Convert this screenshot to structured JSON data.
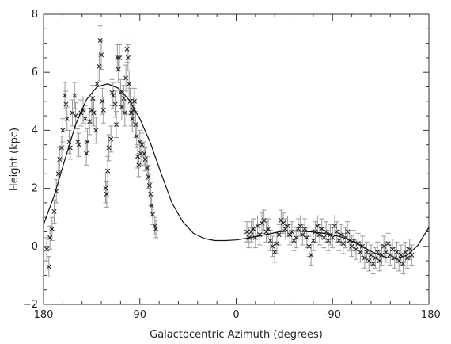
{
  "chart_data": {
    "type": "scatter",
    "title": "",
    "xlabel": "Galactocentric Azimuth (degrees)",
    "ylabel": "Height (kpc)",
    "xlim": [
      180,
      -180
    ],
    "ylim": [
      -2,
      8
    ],
    "x_reversed": true,
    "xticks": [
      180,
      90,
      0,
      -90,
      -180
    ],
    "xtick_labels": [
      "180",
      "90",
      "0",
      "-90",
      "-180"
    ],
    "yticks": [
      -2,
      0,
      2,
      4,
      6,
      8
    ],
    "ytick_labels": [
      "−2",
      "0",
      "2",
      "4",
      "6",
      "8"
    ],
    "grid": false,
    "marker": "x",
    "colors": {
      "points": "#222222",
      "errorbars": "#9a9a9a",
      "fit": "#111111",
      "frame": "#333333"
    },
    "series": [
      {
        "points": [
          {
            "x": 177,
            "y": -0.1,
            "err": 0.4
          },
          {
            "x": 175,
            "y": -0.7,
            "err": 0.35
          },
          {
            "x": 174,
            "y": 0.3,
            "err": 0.4
          },
          {
            "x": 172,
            "y": 0.6,
            "err": 0.4
          },
          {
            "x": 170,
            "y": 1.2,
            "err": 0.4
          },
          {
            "x": 168,
            "y": 1.9,
            "err": 0.4
          },
          {
            "x": 166,
            "y": 2.5,
            "err": 0.4
          },
          {
            "x": 165,
            "y": 3.0,
            "err": 0.4
          },
          {
            "x": 163,
            "y": 3.4,
            "err": 0.4
          },
          {
            "x": 162,
            "y": 4.0,
            "err": 0.4
          },
          {
            "x": 160,
            "y": 5.2,
            "err": 0.45
          },
          {
            "x": 159,
            "y": 4.9,
            "err": 0.45
          },
          {
            "x": 158,
            "y": 4.4,
            "err": 0.4
          },
          {
            "x": 156,
            "y": 3.6,
            "err": 0.4
          },
          {
            "x": 155,
            "y": 3.4,
            "err": 0.4
          },
          {
            "x": 153,
            "y": 4.6,
            "err": 0.45
          },
          {
            "x": 151,
            "y": 5.2,
            "err": 0.45
          },
          {
            "x": 150,
            "y": 4.5,
            "err": 0.45
          },
          {
            "x": 148,
            "y": 3.6,
            "err": 0.45
          },
          {
            "x": 147,
            "y": 3.5,
            "err": 0.4
          },
          {
            "x": 145,
            "y": 4.6,
            "err": 0.45
          },
          {
            "x": 143,
            "y": 4.7,
            "err": 0.45
          },
          {
            "x": 141,
            "y": 4.4,
            "err": 0.45
          },
          {
            "x": 140,
            "y": 3.2,
            "err": 0.4
          },
          {
            "x": 139,
            "y": 3.6,
            "err": 0.45
          },
          {
            "x": 137,
            "y": 4.3,
            "err": 0.45
          },
          {
            "x": 135,
            "y": 4.7,
            "err": 0.45
          },
          {
            "x": 134,
            "y": 5.1,
            "err": 0.45
          },
          {
            "x": 133,
            "y": 4.6,
            "err": 0.45
          },
          {
            "x": 131,
            "y": 4.0,
            "err": 0.45
          },
          {
            "x": 130,
            "y": 5.6,
            "err": 0.45
          },
          {
            "x": 128,
            "y": 6.2,
            "err": 0.5
          },
          {
            "x": 127,
            "y": 7.1,
            "err": 0.5
          },
          {
            "x": 126,
            "y": 6.6,
            "err": 0.5
          },
          {
            "x": 125,
            "y": 5.0,
            "err": 0.45
          },
          {
            "x": 124,
            "y": 4.7,
            "err": 0.45
          },
          {
            "x": 122,
            "y": 2.0,
            "err": 0.5
          },
          {
            "x": 121,
            "y": 1.8,
            "err": 0.45
          },
          {
            "x": 120,
            "y": 2.6,
            "err": 0.5
          },
          {
            "x": 119,
            "y": 3.4,
            "err": 0.45
          },
          {
            "x": 117,
            "y": 3.7,
            "err": 0.45
          },
          {
            "x": 116,
            "y": 5.3,
            "err": 0.45
          },
          {
            "x": 115,
            "y": 5.2,
            "err": 0.45
          },
          {
            "x": 113,
            "y": 4.9,
            "err": 0.45
          },
          {
            "x": 112,
            "y": 4.2,
            "err": 0.45
          },
          {
            "x": 111,
            "y": 6.5,
            "err": 0.45
          },
          {
            "x": 110,
            "y": 6.1,
            "err": 0.45
          },
          {
            "x": 109,
            "y": 6.5,
            "err": 0.45
          },
          {
            "x": 108,
            "y": 5.3,
            "err": 0.45
          },
          {
            "x": 107,
            "y": 4.8,
            "err": 0.45
          },
          {
            "x": 105,
            "y": 5.1,
            "err": 0.45
          },
          {
            "x": 104,
            "y": 4.6,
            "err": 0.45
          },
          {
            "x": 103,
            "y": 5.8,
            "err": 0.45
          },
          {
            "x": 102,
            "y": 6.8,
            "err": 0.45
          },
          {
            "x": 101,
            "y": 6.5,
            "err": 0.45
          },
          {
            "x": 100,
            "y": 5.6,
            "err": 0.45
          },
          {
            "x": 99,
            "y": 5.0,
            "err": 0.45
          },
          {
            "x": 98,
            "y": 4.6,
            "err": 0.45
          },
          {
            "x": 97,
            "y": 4.4,
            "err": 0.45
          },
          {
            "x": 96,
            "y": 4.7,
            "err": 0.45
          },
          {
            "x": 95,
            "y": 5.0,
            "err": 0.45
          },
          {
            "x": 94,
            "y": 4.2,
            "err": 0.45
          },
          {
            "x": 93,
            "y": 3.8,
            "err": 0.4
          },
          {
            "x": 92,
            "y": 3.1,
            "err": 0.4
          },
          {
            "x": 91,
            "y": 2.8,
            "err": 0.4
          },
          {
            "x": 90,
            "y": 3.6,
            "err": 0.4
          },
          {
            "x": 89,
            "y": 3.2,
            "err": 0.4
          },
          {
            "x": 88,
            "y": 3.5,
            "err": 0.4
          },
          {
            "x": 86,
            "y": 3.2,
            "err": 0.4
          },
          {
            "x": 85,
            "y": 3.0,
            "err": 0.4
          },
          {
            "x": 83,
            "y": 2.7,
            "err": 0.4
          },
          {
            "x": 82,
            "y": 2.4,
            "err": 0.4
          },
          {
            "x": 81,
            "y": 2.1,
            "err": 0.4
          },
          {
            "x": 80,
            "y": 1.8,
            "err": 0.4
          },
          {
            "x": 79,
            "y": 1.4,
            "err": 0.35
          },
          {
            "x": 78,
            "y": 1.1,
            "err": 0.35
          },
          {
            "x": 76,
            "y": 0.7,
            "err": 0.3
          },
          {
            "x": 75,
            "y": 0.6,
            "err": 0.3
          },
          {
            "x": -10,
            "y": 0.5,
            "err": 0.35
          },
          {
            "x": -12,
            "y": 0.3,
            "err": 0.35
          },
          {
            "x": -14,
            "y": 0.5,
            "err": 0.35
          },
          {
            "x": -16,
            "y": 0.6,
            "err": 0.35
          },
          {
            "x": -18,
            "y": 0.3,
            "err": 0.35
          },
          {
            "x": -20,
            "y": 0.7,
            "err": 0.35
          },
          {
            "x": -22,
            "y": 0.4,
            "err": 0.35
          },
          {
            "x": -24,
            "y": 0.8,
            "err": 0.35
          },
          {
            "x": -26,
            "y": 0.9,
            "err": 0.35
          },
          {
            "x": -28,
            "y": 0.5,
            "err": 0.35
          },
          {
            "x": -30,
            "y": 0.6,
            "err": 0.35
          },
          {
            "x": -32,
            "y": 0.2,
            "err": 0.35
          },
          {
            "x": -34,
            "y": 0.0,
            "err": 0.35
          },
          {
            "x": -36,
            "y": -0.2,
            "err": 0.35
          },
          {
            "x": -38,
            "y": 0.1,
            "err": 0.35
          },
          {
            "x": -40,
            "y": 0.4,
            "err": 0.35
          },
          {
            "x": -42,
            "y": 0.9,
            "err": 0.35
          },
          {
            "x": -44,
            "y": 0.8,
            "err": 0.35
          },
          {
            "x": -46,
            "y": 0.6,
            "err": 0.35
          },
          {
            "x": -48,
            "y": 0.7,
            "err": 0.35
          },
          {
            "x": -50,
            "y": 0.4,
            "err": 0.35
          },
          {
            "x": -52,
            "y": 0.5,
            "err": 0.35
          },
          {
            "x": -54,
            "y": 0.2,
            "err": 0.35
          },
          {
            "x": -56,
            "y": 0.3,
            "err": 0.35
          },
          {
            "x": -58,
            "y": 0.6,
            "err": 0.35
          },
          {
            "x": -60,
            "y": 0.7,
            "err": 0.35
          },
          {
            "x": -62,
            "y": 0.4,
            "err": 0.35
          },
          {
            "x": -64,
            "y": 0.6,
            "err": 0.35
          },
          {
            "x": -66,
            "y": 0.3,
            "err": 0.35
          },
          {
            "x": -68,
            "y": 0.0,
            "err": 0.35
          },
          {
            "x": -70,
            "y": -0.3,
            "err": 0.35
          },
          {
            "x": -72,
            "y": 0.2,
            "err": 0.35
          },
          {
            "x": -74,
            "y": 0.5,
            "err": 0.35
          },
          {
            "x": -76,
            "y": 0.7,
            "err": 0.35
          },
          {
            "x": -78,
            "y": 0.4,
            "err": 0.35
          },
          {
            "x": -80,
            "y": 0.6,
            "err": 0.35
          },
          {
            "x": -82,
            "y": 0.3,
            "err": 0.35
          },
          {
            "x": -84,
            "y": 0.5,
            "err": 0.35
          },
          {
            "x": -86,
            "y": 0.2,
            "err": 0.35
          },
          {
            "x": -88,
            "y": 0.4,
            "err": 0.35
          },
          {
            "x": -90,
            "y": 0.3,
            "err": 0.35
          },
          {
            "x": -92,
            "y": 0.7,
            "err": 0.35
          },
          {
            "x": -94,
            "y": 0.5,
            "err": 0.35
          },
          {
            "x": -96,
            "y": 0.2,
            "err": 0.35
          },
          {
            "x": -98,
            "y": 0.4,
            "err": 0.35
          },
          {
            "x": -100,
            "y": 0.1,
            "err": 0.35
          },
          {
            "x": -102,
            "y": 0.3,
            "err": 0.35
          },
          {
            "x": -104,
            "y": 0.5,
            "err": 0.35
          },
          {
            "x": -106,
            "y": 0.2,
            "err": 0.35
          },
          {
            "x": -108,
            "y": 0.0,
            "err": 0.35
          },
          {
            "x": -110,
            "y": 0.2,
            "err": 0.35
          },
          {
            "x": -112,
            "y": -0.1,
            "err": 0.35
          },
          {
            "x": -114,
            "y": 0.1,
            "err": 0.35
          },
          {
            "x": -116,
            "y": -0.2,
            "err": 0.35
          },
          {
            "x": -118,
            "y": 0.0,
            "err": 0.35
          },
          {
            "x": -120,
            "y": -0.4,
            "err": 0.35
          },
          {
            "x": -122,
            "y": -0.2,
            "err": 0.35
          },
          {
            "x": -124,
            "y": -0.5,
            "err": 0.35
          },
          {
            "x": -126,
            "y": -0.3,
            "err": 0.35
          },
          {
            "x": -128,
            "y": -0.6,
            "err": 0.35
          },
          {
            "x": -130,
            "y": -0.4,
            "err": 0.35
          },
          {
            "x": -132,
            "y": -0.2,
            "err": 0.35
          },
          {
            "x": -134,
            "y": -0.5,
            "err": 0.35
          },
          {
            "x": -136,
            "y": -0.3,
            "err": 0.35
          },
          {
            "x": -138,
            "y": 0.0,
            "err": 0.35
          },
          {
            "x": -140,
            "y": -0.2,
            "err": 0.35
          },
          {
            "x": -142,
            "y": 0.1,
            "err": 0.35
          },
          {
            "x": -144,
            "y": -0.3,
            "err": 0.35
          },
          {
            "x": -146,
            "y": -0.1,
            "err": 0.35
          },
          {
            "x": -148,
            "y": -0.4,
            "err": 0.35
          },
          {
            "x": -150,
            "y": -0.2,
            "err": 0.35
          },
          {
            "x": -152,
            "y": -0.5,
            "err": 0.35
          },
          {
            "x": -154,
            "y": -0.3,
            "err": 0.35
          },
          {
            "x": -156,
            "y": -0.6,
            "err": 0.35
          },
          {
            "x": -158,
            "y": -0.2,
            "err": 0.35
          },
          {
            "x": -160,
            "y": -0.4,
            "err": 0.35
          },
          {
            "x": -162,
            "y": -0.1,
            "err": 0.35
          },
          {
            "x": -164,
            "y": -0.3,
            "err": 0.35
          }
        ]
      },
      {
        "type": "line",
        "points": [
          {
            "x": 180,
            "y": 0.75
          },
          {
            "x": 170,
            "y": 1.75
          },
          {
            "x": 160,
            "y": 3.0
          },
          {
            "x": 150,
            "y": 4.2
          },
          {
            "x": 140,
            "y": 5.05
          },
          {
            "x": 130,
            "y": 5.5
          },
          {
            "x": 120,
            "y": 5.6
          },
          {
            "x": 110,
            "y": 5.45
          },
          {
            "x": 100,
            "y": 5.05
          },
          {
            "x": 90,
            "y": 4.4
          },
          {
            "x": 80,
            "y": 3.55
          },
          {
            "x": 70,
            "y": 2.5
          },
          {
            "x": 60,
            "y": 1.5
          },
          {
            "x": 50,
            "y": 0.85
          },
          {
            "x": 40,
            "y": 0.45
          },
          {
            "x": 30,
            "y": 0.27
          },
          {
            "x": 20,
            "y": 0.2
          },
          {
            "x": 10,
            "y": 0.2
          },
          {
            "x": 0,
            "y": 0.22
          },
          {
            "x": -10,
            "y": 0.28
          },
          {
            "x": -20,
            "y": 0.35
          },
          {
            "x": -30,
            "y": 0.42
          },
          {
            "x": -40,
            "y": 0.5
          },
          {
            "x": -50,
            "y": 0.53
          },
          {
            "x": -60,
            "y": 0.52
          },
          {
            "x": -70,
            "y": 0.5
          },
          {
            "x": -80,
            "y": 0.46
          },
          {
            "x": -90,
            "y": 0.4
          },
          {
            "x": -100,
            "y": 0.3
          },
          {
            "x": -110,
            "y": 0.15
          },
          {
            "x": -120,
            "y": -0.05
          },
          {
            "x": -130,
            "y": -0.25
          },
          {
            "x": -140,
            "y": -0.38
          },
          {
            "x": -150,
            "y": -0.42
          },
          {
            "x": -160,
            "y": -0.3
          },
          {
            "x": -170,
            "y": 0.05
          },
          {
            "x": -180,
            "y": 0.65
          }
        ]
      }
    ]
  }
}
